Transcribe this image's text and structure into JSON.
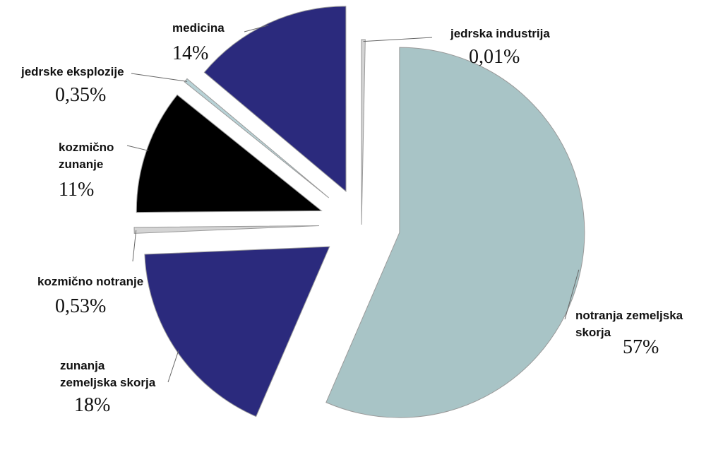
{
  "chart_data": {
    "type": "pie",
    "exploded": true,
    "legend": "none",
    "slices": [
      {
        "label": [
          "notranja zemeljska",
          "skorja"
        ],
        "value": 57,
        "value_label": "57%",
        "color": "#a8c4c6"
      },
      {
        "label": [
          "zunanja",
          "zemeljska skorja"
        ],
        "value": 18,
        "value_label": "18%",
        "color": "#2b2a7d"
      },
      {
        "label": [
          "kozmično notranje"
        ],
        "value": 0.53,
        "value_label": "0,53%",
        "color": "#d4d4d4"
      },
      {
        "label": [
          "kozmično",
          "zunanje"
        ],
        "value": 11,
        "value_label": "11%",
        "color": "#000000"
      },
      {
        "label": [
          "jedrske eksplozije"
        ],
        "value": 0.35,
        "value_label": "0,35%",
        "color": "#b8d2d6"
      },
      {
        "label": [
          "medicina"
        ],
        "value": 14,
        "value_label": "14%",
        "color": "#2b2a7d"
      },
      {
        "label": [
          "jedrska industrija"
        ],
        "value": 0.01,
        "value_label": "0,01%",
        "color": "#d4d4d4"
      }
    ]
  }
}
